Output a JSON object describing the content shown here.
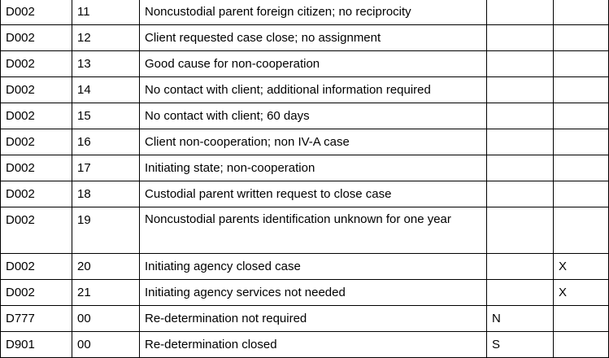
{
  "table": {
    "rows": [
      {
        "code": "D002",
        "reason": "11",
        "description": "Noncustodial parent foreign citizen; no reciprocity",
        "col4": "",
        "col5": ""
      },
      {
        "code": "D002",
        "reason": "12",
        "description": "Client requested case close; no assignment",
        "col4": "",
        "col5": ""
      },
      {
        "code": "D002",
        "reason": "13",
        "description": "Good cause for non-cooperation",
        "col4": "",
        "col5": ""
      },
      {
        "code": "D002",
        "reason": "14",
        "description": "No contact with client; additional information required",
        "col4": "",
        "col5": ""
      },
      {
        "code": "D002",
        "reason": "15",
        "description": "No contact with client; 60 days",
        "col4": "",
        "col5": ""
      },
      {
        "code": "D002",
        "reason": "16",
        "description": "Client non-cooperation; non IV-A case",
        "col4": "",
        "col5": ""
      },
      {
        "code": "D002",
        "reason": "17",
        "description": "Initiating state; non-cooperation",
        "col4": "",
        "col5": ""
      },
      {
        "code": "D002",
        "reason": "18",
        "description": "Custodial parent written request to close case",
        "col4": "",
        "col5": ""
      },
      {
        "code": "D002",
        "reason": "19",
        "description": "Noncustodial parents identification unknown for one year",
        "col4": "",
        "col5": ""
      },
      {
        "code": "D002",
        "reason": "20",
        "description": "Initiating agency closed case",
        "col4": "",
        "col5": "X"
      },
      {
        "code": "D002",
        "reason": "21",
        "description": "Initiating agency services not needed",
        "col4": "",
        "col5": "X"
      },
      {
        "code": "D777",
        "reason": "00",
        "description": "Re-determination not required",
        "col4": "N",
        "col5": ""
      },
      {
        "code": "D901",
        "reason": "00",
        "description": "Re-determination closed",
        "col4": "S",
        "col5": ""
      }
    ]
  }
}
